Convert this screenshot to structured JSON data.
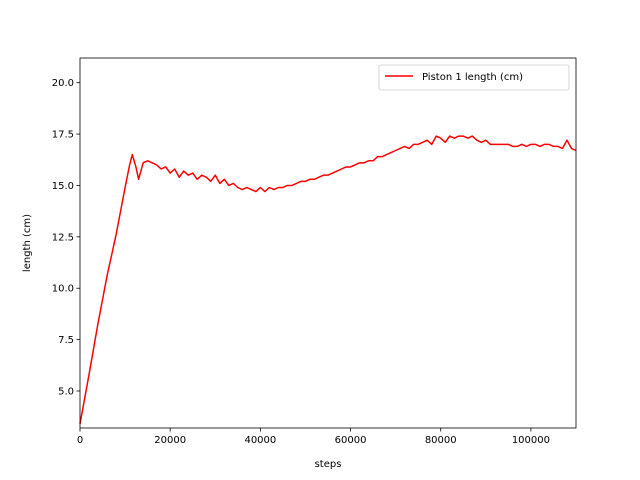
{
  "chart_data": {
    "type": "line",
    "title": "",
    "xlabel": "steps",
    "ylabel": "length (cm)",
    "xlim": [
      0,
      110000
    ],
    "ylim": [
      3.2,
      21.2
    ],
    "xticks": [
      0,
      20000,
      40000,
      60000,
      80000,
      100000
    ],
    "xtick_labels": [
      "0",
      "20000",
      "40000",
      "60000",
      "80000",
      "100000"
    ],
    "yticks": [
      5.0,
      7.5,
      10.0,
      12.5,
      15.0,
      17.5,
      20.0
    ],
    "ytick_labels": [
      "5.0",
      "7.5",
      "10.0",
      "12.5",
      "15.0",
      "17.5",
      "20.0"
    ],
    "grid": false,
    "legend_position": "top-right",
    "series": [
      {
        "name": "Piston 1 length (cm)",
        "color": "#ff0000",
        "x": [
          0,
          2000,
          4000,
          6000,
          8000,
          10000,
          11000,
          11600,
          12400,
          13000,
          14000,
          15000,
          16000,
          17000,
          18000,
          19000,
          20000,
          21000,
          22000,
          23000,
          24000,
          25000,
          26000,
          27000,
          28000,
          29000,
          30000,
          31000,
          32000,
          33000,
          34000,
          35000,
          36000,
          37000,
          38000,
          39000,
          40000,
          41000,
          42000,
          43000,
          44000,
          45000,
          46000,
          47000,
          48000,
          49000,
          50000,
          51000,
          52000,
          53000,
          54000,
          55000,
          56000,
          57000,
          58000,
          59000,
          60000,
          61000,
          62000,
          63000,
          64000,
          65000,
          66000,
          67000,
          68000,
          69000,
          70000,
          71000,
          72000,
          73000,
          74000,
          75000,
          76000,
          77000,
          78000,
          79000,
          80000,
          81000,
          82000,
          83000,
          84000,
          85000,
          86000,
          87000,
          88000,
          89000,
          90000,
          91000,
          92000,
          93000,
          94000,
          95000,
          96000,
          97000,
          98000,
          99000,
          100000,
          101000,
          102000,
          103000,
          104000,
          105000,
          106000,
          107000,
          108000,
          109000,
          110000
        ],
        "y": [
          3.4,
          5.8,
          8.3,
          10.6,
          12.6,
          14.9,
          16.0,
          16.5,
          15.9,
          15.3,
          16.1,
          16.2,
          16.1,
          16.0,
          15.8,
          15.9,
          15.6,
          15.8,
          15.4,
          15.7,
          15.5,
          15.6,
          15.3,
          15.5,
          15.4,
          15.2,
          15.5,
          15.1,
          15.3,
          15.0,
          15.1,
          14.9,
          14.8,
          14.9,
          14.8,
          14.7,
          14.9,
          14.7,
          14.9,
          14.8,
          14.9,
          14.9,
          15.0,
          15.0,
          15.1,
          15.2,
          15.2,
          15.3,
          15.3,
          15.4,
          15.5,
          15.5,
          15.6,
          15.7,
          15.8,
          15.9,
          15.9,
          16.0,
          16.1,
          16.1,
          16.2,
          16.2,
          16.4,
          16.4,
          16.5,
          16.6,
          16.7,
          16.8,
          16.9,
          16.8,
          17.0,
          17.0,
          17.1,
          17.2,
          17.0,
          17.4,
          17.3,
          17.1,
          17.4,
          17.3,
          17.4,
          17.4,
          17.3,
          17.4,
          17.2,
          17.1,
          17.2,
          17.0,
          17.0,
          17.0,
          17.0,
          17.0,
          16.9,
          16.9,
          17.0,
          16.9,
          17.0,
          17.0,
          16.9,
          17.0,
          17.0,
          16.9,
          16.9,
          16.8,
          17.2,
          16.8,
          16.7
        ]
      }
    ]
  }
}
